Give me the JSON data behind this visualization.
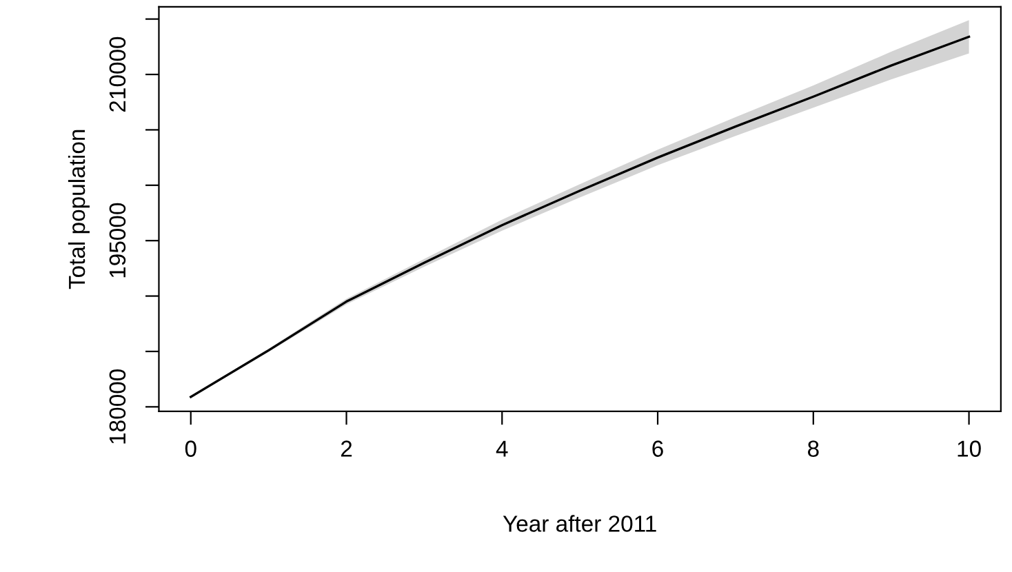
{
  "chart_data": {
    "type": "line",
    "xlabel": "Year after 2011",
    "ylabel": "Total population",
    "x": [
      0,
      1,
      2,
      3,
      4,
      5,
      6,
      7,
      8,
      9,
      10
    ],
    "series": [
      {
        "color": "#000000",
        "values": [
          180900,
          185100,
          189500,
          193000,
          196400,
          199500,
          202500,
          205300,
          208000,
          210800,
          213400
        ],
        "lower": [
          180850,
          184950,
          189250,
          192650,
          195900,
          198900,
          201800,
          204450,
          207000,
          209550,
          211900
        ],
        "upper": [
          180950,
          185250,
          189750,
          193350,
          196900,
          200100,
          203200,
          206150,
          209000,
          212050,
          214900
        ]
      }
    ],
    "xlim": [
      -0.41,
      10.41
    ],
    "xticks": [
      0,
      2,
      4,
      6,
      8,
      10
    ],
    "ylim": [
      179600,
      216100
    ],
    "yticks": [
      180000,
      {
        "value": 185000,
        "label": null
      },
      {
        "value": 190000,
        "label": null
      },
      195000,
      {
        "value": 200000,
        "label": null
      },
      {
        "value": 205000,
        "label": null
      },
      210000,
      {
        "value": 215000,
        "label": null
      }
    ],
    "grid": false,
    "legend": false
  }
}
